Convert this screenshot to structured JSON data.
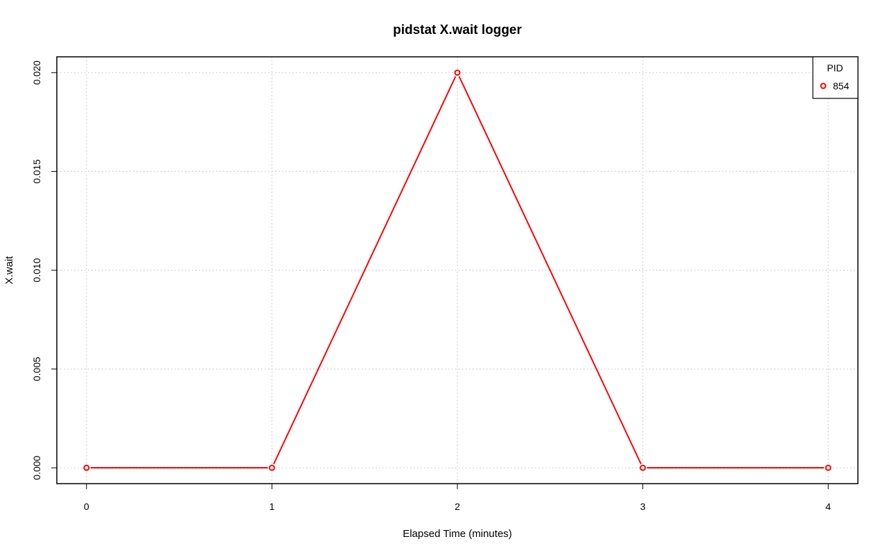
{
  "chart_data": {
    "type": "line",
    "title": "pidstat X.wait logger",
    "xlabel": "Elapsed Time (minutes)",
    "ylabel": "X.wait",
    "xlim": [
      -0.16,
      4.16
    ],
    "ylim": [
      -0.0008,
      0.0208
    ],
    "x_ticks": [
      0,
      1,
      2,
      3,
      4
    ],
    "x_tick_labels": [
      "0",
      "1",
      "2",
      "3",
      "4"
    ],
    "y_ticks": [
      0,
      0.005,
      0.01,
      0.015,
      0.02
    ],
    "y_tick_labels": [
      "0.000",
      "0.005",
      "0.010",
      "0.015",
      "0.020"
    ],
    "grid": true,
    "legend": {
      "title": "PID",
      "placement": "top-right"
    },
    "series": [
      {
        "name": "854",
        "color": "#ff0000",
        "marker": "open-circle",
        "x": [
          0,
          1,
          2,
          3,
          4
        ],
        "y": [
          0,
          0,
          0.02,
          0,
          0
        ]
      }
    ]
  }
}
